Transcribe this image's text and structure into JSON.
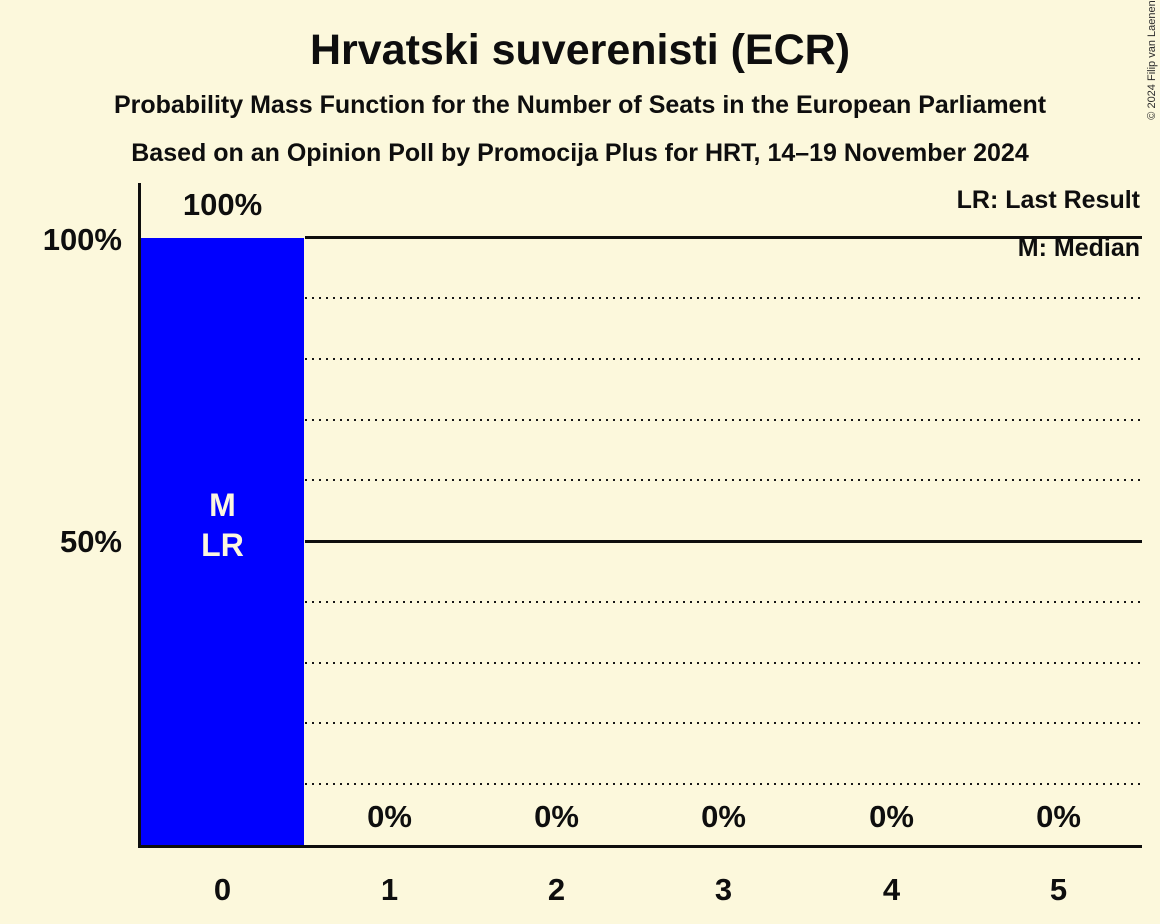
{
  "header": {
    "title": "Hrvatski suverenisti (ECR)",
    "subtitle1": "Probability Mass Function for the Number of Seats in the European Parliament",
    "subtitle2": "Based on an Opinion Poll by Promocija Plus for HRT, 14–19 November 2024"
  },
  "legend": {
    "last_result": "LR: Last Result",
    "median": "M: Median"
  },
  "axes": {
    "y_ticks": [
      "100%",
      "50%"
    ],
    "x_ticks": [
      "0",
      "1",
      "2",
      "3",
      "4",
      "5"
    ]
  },
  "chart_data": {
    "type": "bar",
    "title": "Hrvatski suverenisti (ECR)",
    "subtitle": "Probability Mass Function for the Number of Seats in the European Parliament",
    "source_note": "Based on an Opinion Poll by Promocija Plus for HRT, 14–19 November 2024",
    "categories": [
      0,
      1,
      2,
      3,
      4,
      5
    ],
    "values": [
      100,
      0,
      0,
      0,
      0,
      0
    ],
    "value_labels": [
      "100%",
      "0%",
      "0%",
      "0%",
      "0%",
      "0%"
    ],
    "ylim": [
      0,
      100
    ],
    "y_gridlines_pct": [
      10,
      20,
      30,
      40,
      50,
      60,
      70,
      80,
      90,
      100
    ],
    "grid_style": "dotted with solid lines at 50% and 100%",
    "legend_position": "top-right",
    "median_category": 0,
    "last_result_category": 0,
    "bar_annotations": [
      "M",
      "LR"
    ]
  },
  "footer": {
    "copyright": "© 2024 Filip van Laenen"
  },
  "colors": {
    "background": "#FCF8DC",
    "bar": "#0000FF",
    "text": "#0e0e0e",
    "bar_annotation_text": "#FBF6DF"
  }
}
